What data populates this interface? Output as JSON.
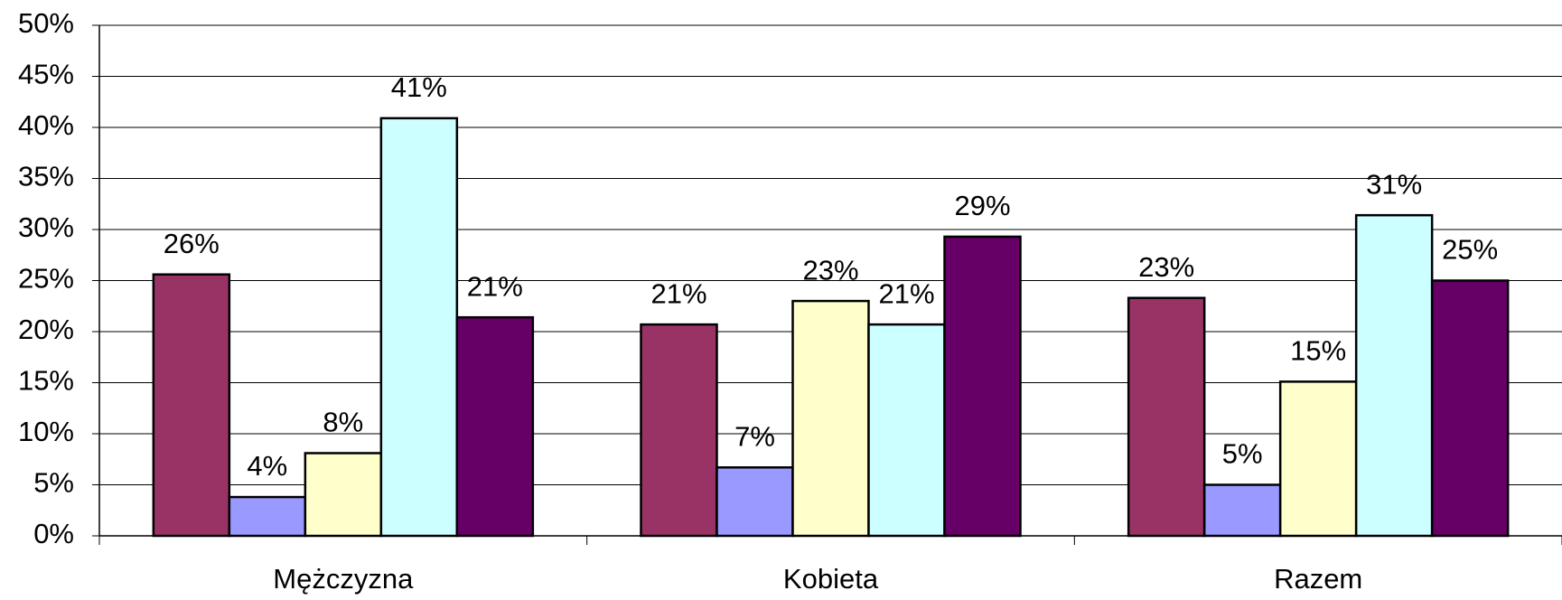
{
  "chart_data": {
    "type": "bar",
    "categories": [
      "Mężczyzna",
      "Kobieta",
      "Razem"
    ],
    "series": [
      {
        "color": "#993366",
        "values": [
          25.6,
          20.7,
          23.3
        ],
        "value_labels": [
          "26%",
          "21%",
          "23%"
        ]
      },
      {
        "color": "#9999ff",
        "values": [
          3.8,
          6.7,
          5.0
        ],
        "value_labels": [
          "4%",
          "7%",
          "5%"
        ]
      },
      {
        "color": "#ffffcc",
        "values": [
          8.1,
          23.0,
          15.1
        ],
        "value_labels": [
          "8%",
          "23%",
          "15%"
        ]
      },
      {
        "color": "#ccffff",
        "values": [
          40.9,
          20.7,
          31.4
        ],
        "value_labels": [
          "41%",
          "21%",
          "31%"
        ]
      },
      {
        "color": "#660066",
        "values": [
          21.4,
          29.3,
          25.0
        ],
        "value_labels": [
          "21%",
          "29%",
          "25%"
        ]
      }
    ],
    "ylim": [
      0,
      50
    ],
    "yticks": [
      {
        "value": 0,
        "label": "0%"
      },
      {
        "value": 5,
        "label": "5%"
      },
      {
        "value": 10,
        "label": "10%"
      },
      {
        "value": 15,
        "label": "15%"
      },
      {
        "value": 20,
        "label": "20%"
      },
      {
        "value": 25,
        "label": "25%"
      },
      {
        "value": 30,
        "label": "30%"
      },
      {
        "value": 35,
        "label": "35%"
      },
      {
        "value": 40,
        "label": "40%"
      },
      {
        "value": 45,
        "label": "45%"
      },
      {
        "value": 50,
        "label": "50%"
      }
    ],
    "grid": true
  }
}
